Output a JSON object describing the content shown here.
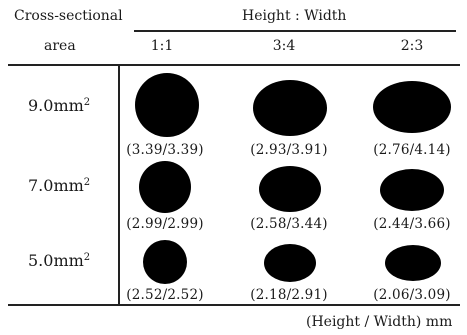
{
  "header": {
    "row_header_line1": "Cross-sectional",
    "row_header_line2": "area",
    "group_header": "Height : Width",
    "columns": [
      "1:1",
      "3:4",
      "2:3"
    ]
  },
  "rows": [
    {
      "area_value": "9.0mm",
      "area_exponent": "2",
      "cells": [
        {
          "dims": "(3.39/3.39)",
          "height_mm": 3.39,
          "width_mm": 3.39
        },
        {
          "dims": "(2.93/3.91)",
          "height_mm": 2.93,
          "width_mm": 3.91
        },
        {
          "dims": "(2.76/4.14)",
          "height_mm": 2.76,
          "width_mm": 4.14
        }
      ]
    },
    {
      "area_value": "7.0mm",
      "area_exponent": "2",
      "cells": [
        {
          "dims": "(2.99/2.99)",
          "height_mm": 2.99,
          "width_mm": 2.99
        },
        {
          "dims": "(2.58/3.44)",
          "height_mm": 2.58,
          "width_mm": 3.44
        },
        {
          "dims": "(2.44/3.66)",
          "height_mm": 2.44,
          "width_mm": 3.66
        }
      ]
    },
    {
      "area_value": "5.0mm",
      "area_exponent": "2",
      "cells": [
        {
          "dims": "(2.52/2.52)",
          "height_mm": 2.52,
          "width_mm": 2.52
        },
        {
          "dims": "(2.18/2.91)",
          "height_mm": 2.18,
          "width_mm": 2.91
        },
        {
          "dims": "(2.06/3.09)",
          "height_mm": 2.06,
          "width_mm": 3.09
        }
      ]
    }
  ],
  "footer": {
    "units_note": "(Height / Width)  mm"
  },
  "colors": {
    "ellipse_fill": "#000000",
    "rule_color": "#222222",
    "background": "#ffffff"
  }
}
